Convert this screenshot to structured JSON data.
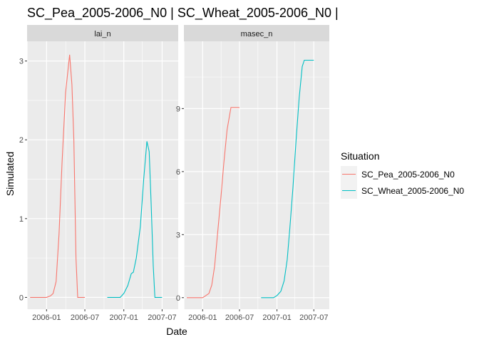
{
  "chart_data": {
    "type": "line",
    "title": "SC_Pea_2005-2006_N0 | SC_Wheat_2005-2006_N0 |",
    "xlabel": "Date",
    "ylabel": "Simulated",
    "x_ticks": [
      "2006-01",
      "2006-07",
      "2007-01",
      "2007-07"
    ],
    "legend": {
      "title": "Situation",
      "placement": "right"
    },
    "series_colors": {
      "SC_Pea_2005-2006_N0": "#F8766D",
      "SC_Wheat_2005-2006_N0": "#00BFC4"
    },
    "x_range": [
      "2005-10-01",
      "2007-09-15"
    ],
    "facets": [
      {
        "name": "lai_n",
        "ylim": [
          -0.15,
          3.25
        ],
        "y_ticks": [
          0,
          1,
          2,
          3
        ],
        "series": [
          {
            "name": "SC_Pea_2005-2006_N0",
            "points": [
              [
                "2005-10-15",
                0
              ],
              [
                "2006-01-01",
                0
              ],
              [
                "2006-01-20",
                0.02
              ],
              [
                "2006-02-01",
                0.05
              ],
              [
                "2006-02-15",
                0.2
              ],
              [
                "2006-03-01",
                0.8
              ],
              [
                "2006-03-15",
                1.7
              ],
              [
                "2006-04-01",
                2.6
              ],
              [
                "2006-04-20",
                3.08
              ],
              [
                "2006-05-01",
                2.7
              ],
              [
                "2006-05-10",
                2.0
              ],
              [
                "2006-05-20",
                0.5
              ],
              [
                "2006-05-28",
                0
              ],
              [
                "2006-07-01",
                0
              ]
            ]
          },
          {
            "name": "SC_Wheat_2005-2006_N0",
            "points": [
              [
                "2006-10-15",
                0
              ],
              [
                "2006-12-15",
                0
              ],
              [
                "2007-01-01",
                0.05
              ],
              [
                "2007-01-20",
                0.15
              ],
              [
                "2007-02-05",
                0.3
              ],
              [
                "2007-02-15",
                0.32
              ],
              [
                "2007-03-01",
                0.5
              ],
              [
                "2007-03-20",
                0.9
              ],
              [
                "2007-04-05",
                1.5
              ],
              [
                "2007-04-20",
                1.98
              ],
              [
                "2007-05-01",
                1.85
              ],
              [
                "2007-05-10",
                1.2
              ],
              [
                "2007-05-20",
                0.4
              ],
              [
                "2007-05-28",
                0
              ],
              [
                "2007-07-01",
                0
              ]
            ]
          }
        ]
      },
      {
        "name": "masec_n",
        "ylim": [
          -0.55,
          12.2
        ],
        "y_ticks": [
          0,
          3,
          6,
          9
        ],
        "series": [
          {
            "name": "SC_Pea_2005-2006_N0",
            "points": [
              [
                "2005-10-15",
                0
              ],
              [
                "2006-01-01",
                0
              ],
              [
                "2006-02-01",
                0.2
              ],
              [
                "2006-02-15",
                0.6
              ],
              [
                "2006-03-01",
                1.5
              ],
              [
                "2006-03-15",
                3.0
              ],
              [
                "2006-04-01",
                4.8
              ],
              [
                "2006-04-15",
                6.4
              ],
              [
                "2006-05-01",
                8.0
              ],
              [
                "2006-05-20",
                9.05
              ],
              [
                "2006-07-01",
                9.05
              ]
            ]
          },
          {
            "name": "SC_Wheat_2005-2006_N0",
            "points": [
              [
                "2006-10-15",
                0
              ],
              [
                "2006-12-15",
                0
              ],
              [
                "2007-01-01",
                0.1
              ],
              [
                "2007-01-20",
                0.3
              ],
              [
                "2007-02-05",
                0.8
              ],
              [
                "2007-02-20",
                1.8
              ],
              [
                "2007-03-05",
                3.3
              ],
              [
                "2007-03-20",
                5.2
              ],
              [
                "2007-04-05",
                7.5
              ],
              [
                "2007-04-20",
                9.5
              ],
              [
                "2007-05-05",
                11.0
              ],
              [
                "2007-05-15",
                11.3
              ],
              [
                "2007-07-01",
                11.3
              ]
            ]
          }
        ]
      }
    ]
  }
}
